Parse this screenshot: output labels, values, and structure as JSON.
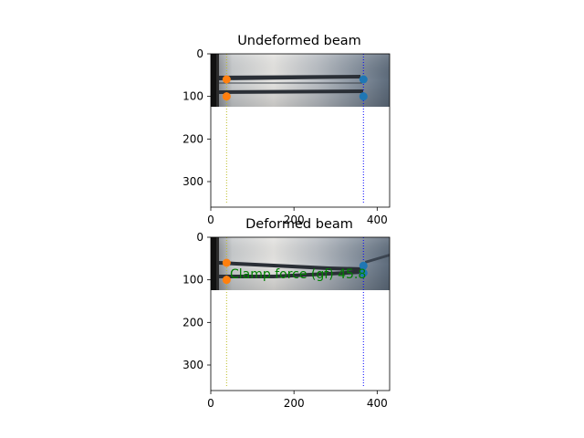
{
  "colors": {
    "marker_left": "#ff7f0e",
    "marker_right": "#1f77b4",
    "line_left": "#bcbd22",
    "line_right": "#0000ff",
    "annotation": "#008000"
  },
  "chart_data": [
    {
      "type": "image",
      "title": "Undeformed beam",
      "xlim": [
        0,
        430
      ],
      "ylim": [
        360,
        0
      ],
      "x_ticks": [
        "0",
        "200",
        "400"
      ],
      "y_ticks": [
        "0",
        "100",
        "200",
        "300"
      ],
      "image_extent": {
        "x": [
          0,
          430
        ],
        "y": [
          0,
          128
        ]
      },
      "vlines": [
        {
          "x": 38,
          "style": "dotted",
          "color_key": "line_left"
        },
        {
          "x": 367,
          "style": "dotted",
          "color_key": "line_right"
        }
      ],
      "series": [
        {
          "color_key": "marker_left",
          "points": [
            [
              38,
              60
            ],
            [
              38,
              100
            ]
          ]
        },
        {
          "color_key": "marker_right",
          "points": [
            [
              367,
              60
            ],
            [
              367,
              100
            ]
          ]
        }
      ]
    },
    {
      "type": "image",
      "title": "Deformed beam",
      "xlim": [
        0,
        430
      ],
      "ylim": [
        360,
        0
      ],
      "x_ticks": [
        "0",
        "200",
        "400"
      ],
      "y_ticks": [
        "0",
        "100",
        "200",
        "300"
      ],
      "image_extent": {
        "x": [
          0,
          430
        ],
        "y": [
          0,
          128
        ]
      },
      "vlines": [
        {
          "x": 38,
          "style": "dotted",
          "color_key": "line_left"
        },
        {
          "x": 367,
          "style": "dotted",
          "color_key": "line_right"
        }
      ],
      "series": [
        {
          "color_key": "marker_left",
          "points": [
            [
              38,
              60
            ],
            [
              38,
              100
            ]
          ]
        },
        {
          "color_key": "marker_right",
          "points": [
            [
              367,
              67
            ],
            [
              367,
              84
            ]
          ]
        }
      ],
      "annotation": {
        "text": "Clamp force (gf) 45.8",
        "x": 48,
        "y": 90
      }
    }
  ]
}
